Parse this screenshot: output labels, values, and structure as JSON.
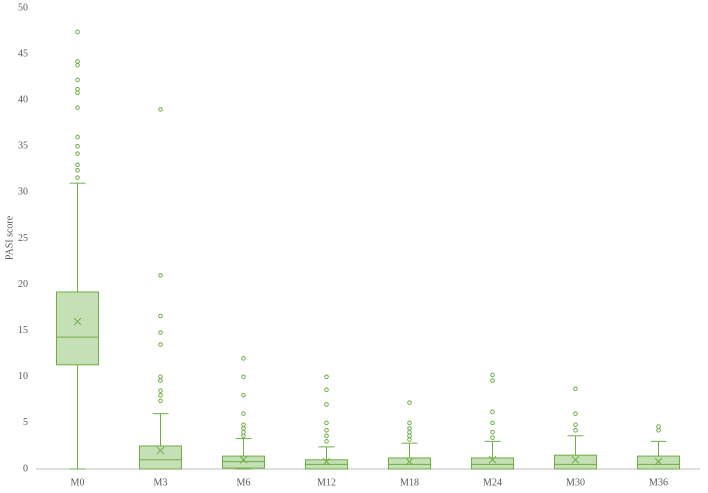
{
  "chart_data": {
    "type": "box",
    "y_label": "PASI score",
    "categories": [
      "M0",
      "M3",
      "M6",
      "M12",
      "M18",
      "M24",
      "M30",
      "M36"
    ],
    "color": "#70ad47",
    "fill": "#c5e0b4",
    "ylim": [
      0,
      50
    ],
    "yticks": [
      0,
      5,
      10,
      15,
      20,
      25,
      30,
      35,
      40,
      45,
      50
    ],
    "grid": false,
    "boxes": [
      {
        "min": 0,
        "q1": 11.3,
        "median": 14.3,
        "q3": 19.2,
        "max": 31,
        "mean": 16,
        "outliers": [
          31.6,
          32.4,
          33,
          34.2,
          35,
          36,
          39.2,
          40.8,
          41.2,
          42.2,
          43.8,
          44.2,
          47.4
        ]
      },
      {
        "min": 0,
        "q1": 0,
        "median": 1,
        "q3": 2.5,
        "max": 6,
        "mean": 2,
        "outliers": [
          7.4,
          8,
          8.5,
          9.6,
          10,
          13.5,
          14.8,
          16.6,
          21,
          39
        ]
      },
      {
        "min": 0,
        "q1": 0.1,
        "median": 0.8,
        "q3": 1.4,
        "max": 3.3,
        "mean": 1,
        "outliers": [
          3.6,
          4,
          4.4,
          4.8,
          6,
          8,
          10,
          12
        ]
      },
      {
        "min": 0,
        "q1": 0,
        "median": 0.5,
        "q3": 1,
        "max": 2.4,
        "mean": 0.8,
        "outliers": [
          3,
          3.6,
          4.2,
          5,
          7,
          8.6,
          10
        ]
      },
      {
        "min": 0,
        "q1": 0,
        "median": 0.5,
        "q3": 1.2,
        "max": 2.8,
        "mean": 0.8,
        "outliers": [
          3.2,
          3.6,
          4,
          4.4,
          5,
          7.2
        ]
      },
      {
        "min": 0,
        "q1": 0,
        "median": 0.5,
        "q3": 1.2,
        "max": 3,
        "mean": 1,
        "outliers": [
          3.4,
          4,
          5,
          6.2,
          9.6,
          10.2
        ]
      },
      {
        "min": 0,
        "q1": 0,
        "median": 0.5,
        "q3": 1.5,
        "max": 3.6,
        "mean": 1,
        "outliers": [
          4.2,
          4.8,
          6,
          8.7
        ]
      },
      {
        "min": 0,
        "q1": 0,
        "median": 0.5,
        "q3": 1.4,
        "max": 3,
        "mean": 0.8,
        "outliers": [
          4.2,
          4.6
        ]
      }
    ]
  }
}
